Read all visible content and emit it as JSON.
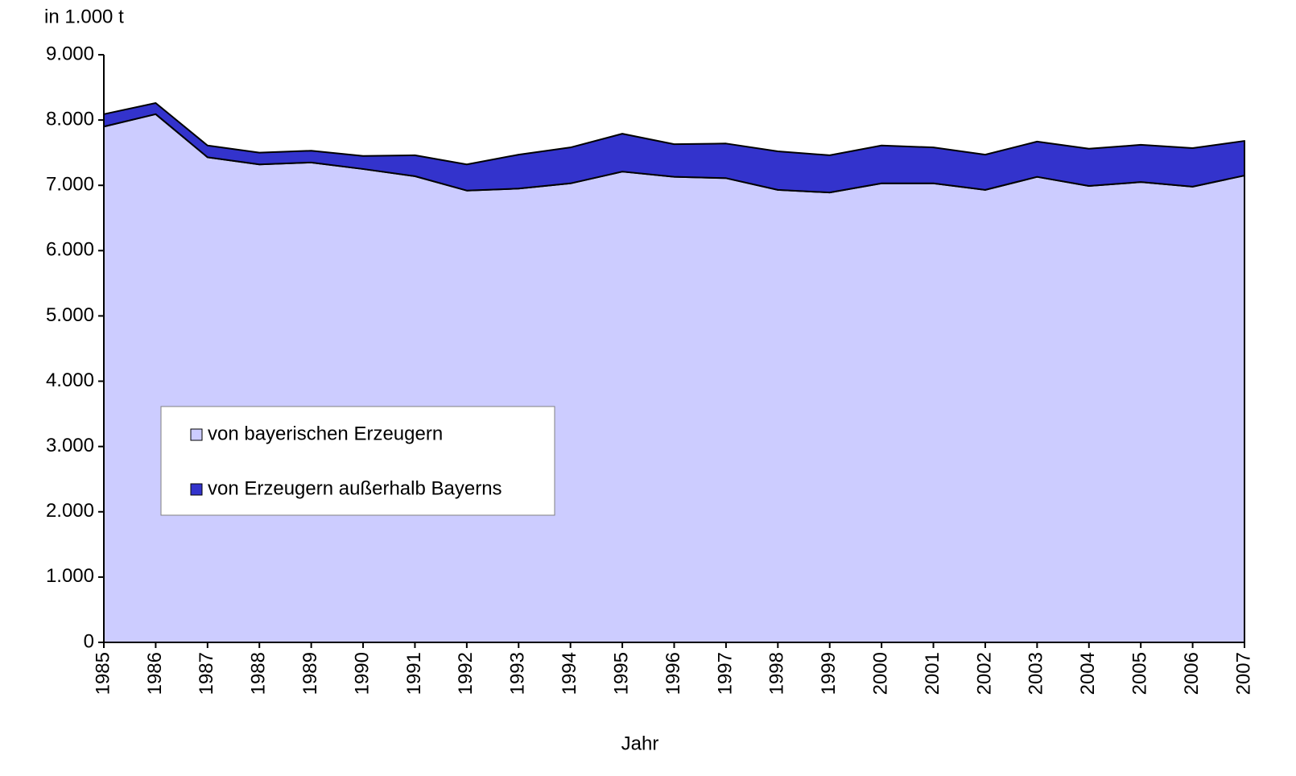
{
  "chart_data": {
    "type": "stacked_area",
    "y_unit_label": "in 1.000 t",
    "x_label": "Jahr",
    "categories": [
      "1985",
      "1986",
      "1987",
      "1988",
      "1989",
      "1990",
      "1991",
      "1992",
      "1993",
      "1994",
      "1995",
      "1996",
      "1997",
      "1998",
      "1999",
      "2000",
      "2001",
      "2002",
      "2003",
      "2004",
      "2005",
      "2006",
      "2007"
    ],
    "series": [
      {
        "name": "von bayerischen Erzeugern",
        "color": "#ccccff",
        "values": [
          7900,
          8090,
          7430,
          7320,
          7350,
          7250,
          7140,
          6920,
          6950,
          7030,
          7210,
          7130,
          7110,
          6930,
          6890,
          7030,
          7030,
          6930,
          7130,
          6990,
          7050,
          6980,
          7150
        ]
      },
      {
        "name": "von Erzeugern außerhalb Bayerns",
        "color": "#3333cc",
        "values": [
          190,
          170,
          180,
          180,
          180,
          200,
          320,
          400,
          520,
          550,
          580,
          500,
          530,
          590,
          570,
          580,
          550,
          540,
          540,
          570,
          570,
          590,
          530
        ]
      }
    ],
    "ylim": [
      0,
      9000
    ],
    "yticks": [
      0,
      {
        "value": 1000,
        "label": "1.000"
      },
      {
        "value": 2000,
        "label": "2.000"
      },
      {
        "value": 3000,
        "label": "3.000"
      },
      {
        "value": 4000,
        "label": "4.000"
      },
      {
        "value": 5000,
        "label": "5.000"
      },
      {
        "value": 6000,
        "label": "6.000"
      },
      {
        "value": 7000,
        "label": "7.000"
      },
      {
        "value": 8000,
        "label": "8.000"
      },
      {
        "value": 9000,
        "label": "9.000"
      }
    ],
    "legend": "inside-lower-left"
  }
}
